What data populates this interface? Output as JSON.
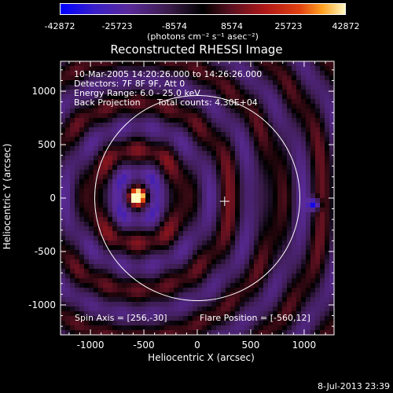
{
  "chart_data": {
    "type": "heatmap",
    "title": "Reconstructed RHESSI Image",
    "xlabel": "Heliocentric X (arcsec)",
    "ylabel": "Heliocentric Y (arcsec)",
    "xlim": [
      -1280,
      1280
    ],
    "ylim": [
      -1280,
      1280
    ],
    "x_ticks": [
      -1000,
      -500,
      0,
      500,
      1000
    ],
    "y_ticks": [
      -1000,
      -500,
      0,
      500,
      1000
    ],
    "colorbar": {
      "range": [
        -42872,
        42872
      ],
      "tick_labels": [
        "-42872",
        "-25723",
        "-8574",
        "8574",
        "25723",
        "42872"
      ],
      "units_label": "(photons cm⁻² s⁻¹ asec⁻²)"
    },
    "annotations": {
      "time_range": "10-Mar-2005 14:20:26.000 to 14:26:26.000",
      "detectors": "Detectors: 7F 8F 9F, Att 0",
      "energy_range": "Energy Range: 6.0 - 25.0 keV",
      "method": "Back Projection",
      "total_counts": "Total counts: 4.30E+04",
      "spin_axis": "Spin Axis = [256,-30]",
      "flare_position": "Flare Position = [-560,12]"
    },
    "solar_disk": {
      "center": [
        0,
        0
      ],
      "radius_arcsec": 960
    },
    "source_peak": {
      "x": -560,
      "y": 12
    },
    "spin_axis_marker": {
      "x": 256,
      "y": -30
    }
  },
  "footer": {
    "date": "8-Jul-2013 23:39"
  },
  "colors": {
    "positive_peak": "#fff8c0",
    "negative_peak": "#0000ff",
    "background": "#000000",
    "axes": "#ffffff"
  }
}
